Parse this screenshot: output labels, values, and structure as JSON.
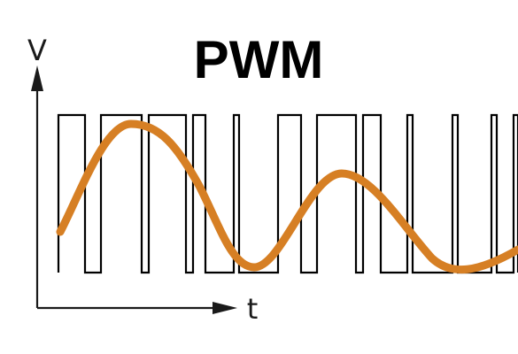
{
  "title": "PWM",
  "axes": {
    "y_label": "V",
    "x_label": "t"
  },
  "colors": {
    "pwm_signal": "#000000",
    "sine_wave": "#d67f24",
    "axis": "#1a1a1a",
    "background": "#ffffff"
  },
  "pwm": {
    "pulse_count": 15,
    "levels": [
      "low",
      "high"
    ]
  }
}
